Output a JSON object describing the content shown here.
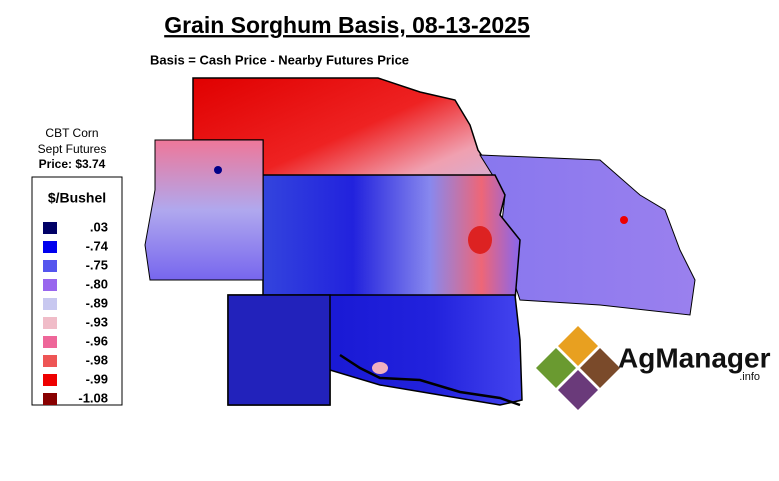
{
  "header": {
    "title": "Grain Sorghum Basis, 08-13-2025",
    "subtitle": "Basis = Cash Price - Nearby Futures Price"
  },
  "futures_note": [
    "CBT Corn",
    "Sept Futures",
    "Price: $3.74"
  ],
  "legend": {
    "title": "$/Bushel",
    "items": [
      {
        "label": ".03",
        "color": "#000066"
      },
      {
        "label": "-.74",
        "color": "#0000ee"
      },
      {
        "label": "-.75",
        "color": "#5555ee"
      },
      {
        "label": "-.80",
        "color": "#9966ee"
      },
      {
        "label": "-.89",
        "color": "#c8c8f0"
      },
      {
        "label": "-.93",
        "color": "#f0bcc8"
      },
      {
        "label": "-.96",
        "color": "#ee6699"
      },
      {
        "label": "-.98",
        "color": "#ee5555"
      },
      {
        "label": "-.99",
        "color": "#ee0000"
      },
      {
        "label": "-1.08",
        "color": "#880000"
      }
    ]
  },
  "logo": {
    "name": "AgManager",
    "suffix": ".info"
  }
}
